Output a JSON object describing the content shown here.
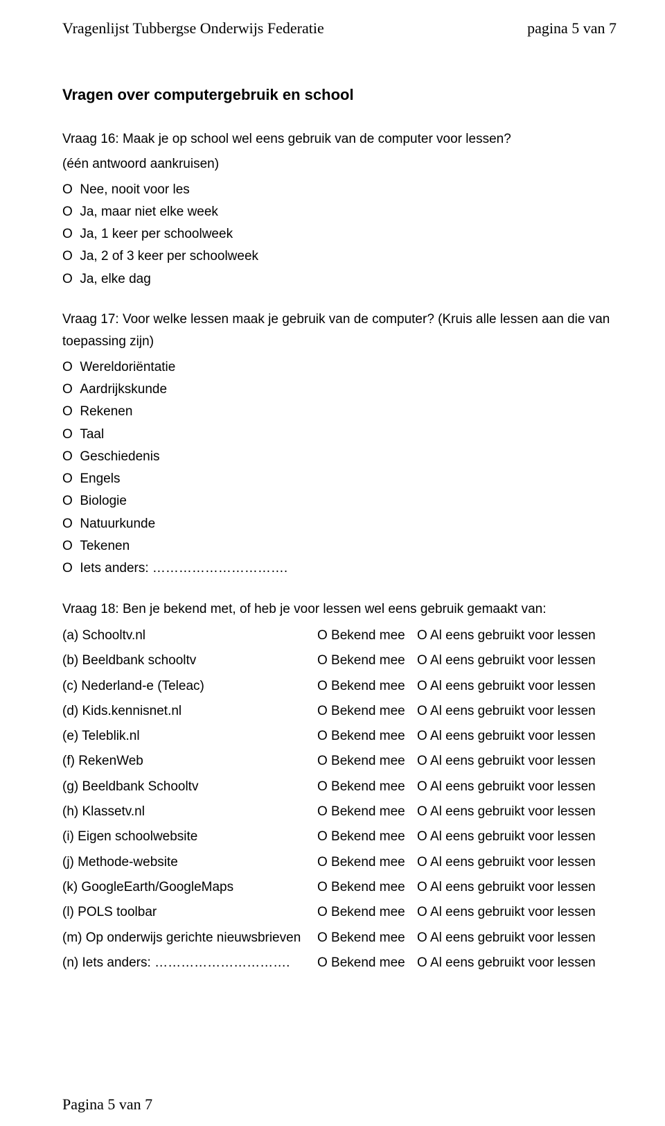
{
  "header": {
    "left": "Vragenlijst Tubbergse Onderwijs Federatie",
    "right": "pagina 5 van 7"
  },
  "section_title": "Vragen over computergebruik en school",
  "q16": {
    "text": "Vraag 16: Maak je op school wel eens gebruik van de computer voor lessen?",
    "instruction": "(één antwoord aankruisen)",
    "bullet": "O",
    "options": [
      "Nee, nooit voor les",
      "Ja, maar niet elke week",
      "Ja, 1 keer per schoolweek",
      "Ja, 2 of 3 keer per schoolweek",
      "Ja, elke dag"
    ]
  },
  "q17": {
    "text": "Vraag 17: Voor welke lessen maak je gebruik van de computer? (Kruis alle lessen aan die van toepassing zijn)",
    "bullet": "O",
    "options": [
      "Wereldoriëntatie",
      "Aardrijkskunde",
      "Rekenen",
      "Taal",
      "Geschiedenis",
      "Engels",
      "Biologie",
      "Natuurkunde",
      "Tekenen"
    ],
    "other_label": "Iets anders:"
  },
  "q18": {
    "text": "Vraag 18: Ben je bekend met, of heb je voor lessen wel eens gebruik gemaakt van:",
    "col_known": "O Bekend mee",
    "col_used": "O Al eens gebruikt voor lessen",
    "items": [
      "(a) Schooltv.nl",
      "(b) Beeldbank schooltv",
      "(c) Nederland-e (Teleac)",
      "(d) Kids.kennisnet.nl",
      "(e) Teleblik.nl",
      "(f)  RekenWeb",
      "(g) Beeldbank Schooltv",
      "(h) Klassetv.nl",
      "(i)  Eigen schoolwebsite",
      "(j)  Methode-website",
      "(k) GoogleEarth/GoogleMaps",
      "(l)  POLS toolbar",
      "(m)  Op onderwijs gerichte nieuwsbrieven"
    ],
    "other_label": "(n)  Iets anders:"
  },
  "footer": "Pagina 5 van 7"
}
